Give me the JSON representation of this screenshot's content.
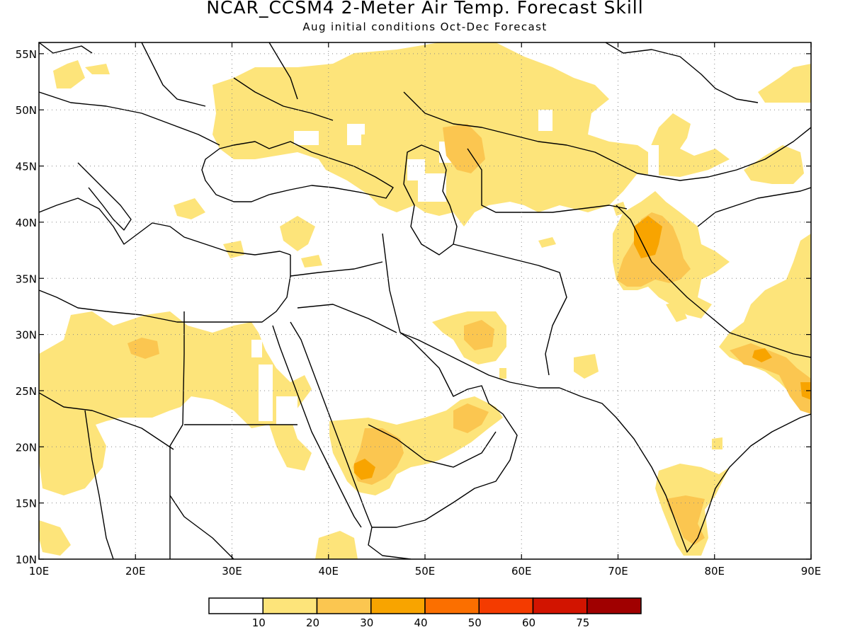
{
  "title": "NCAR_CCSM4 2-Meter Air Temp. Forecast Skill",
  "subtitle": "Aug initial conditions  Oct-Dec Forecast",
  "map": {
    "lon_range": [
      10,
      90
    ],
    "lat_range": [
      10,
      56
    ],
    "x_ticks": [
      {
        "value": 10,
        "label": "10E"
      },
      {
        "value": 20,
        "label": "20E"
      },
      {
        "value": 30,
        "label": "30E"
      },
      {
        "value": 40,
        "label": "40E"
      },
      {
        "value": 50,
        "label": "50E"
      },
      {
        "value": 60,
        "label": "60E"
      },
      {
        "value": 70,
        "label": "70E"
      },
      {
        "value": 80,
        "label": "80E"
      },
      {
        "value": 90,
        "label": "90E"
      }
    ],
    "y_ticks": [
      {
        "value": 10,
        "label": "10N"
      },
      {
        "value": 15,
        "label": "15N"
      },
      {
        "value": 20,
        "label": "20N"
      },
      {
        "value": 25,
        "label": "25N"
      },
      {
        "value": 30,
        "label": "30N"
      },
      {
        "value": 35,
        "label": "35N"
      },
      {
        "value": 40,
        "label": "40N"
      },
      {
        "value": 45,
        "label": "45N"
      },
      {
        "value": 50,
        "label": "50N"
      },
      {
        "value": 55,
        "label": "55N"
      }
    ],
    "grid": "dotted"
  },
  "colorbar": {
    "labels": [
      "10",
      "20",
      "30",
      "40",
      "50",
      "60",
      "75"
    ],
    "colors": [
      "#ffffff",
      "#fde47a",
      "#fbc650",
      "#f8a400",
      "#fb6f00",
      "#f43b00",
      "#d21400",
      "#a00000"
    ]
  }
}
